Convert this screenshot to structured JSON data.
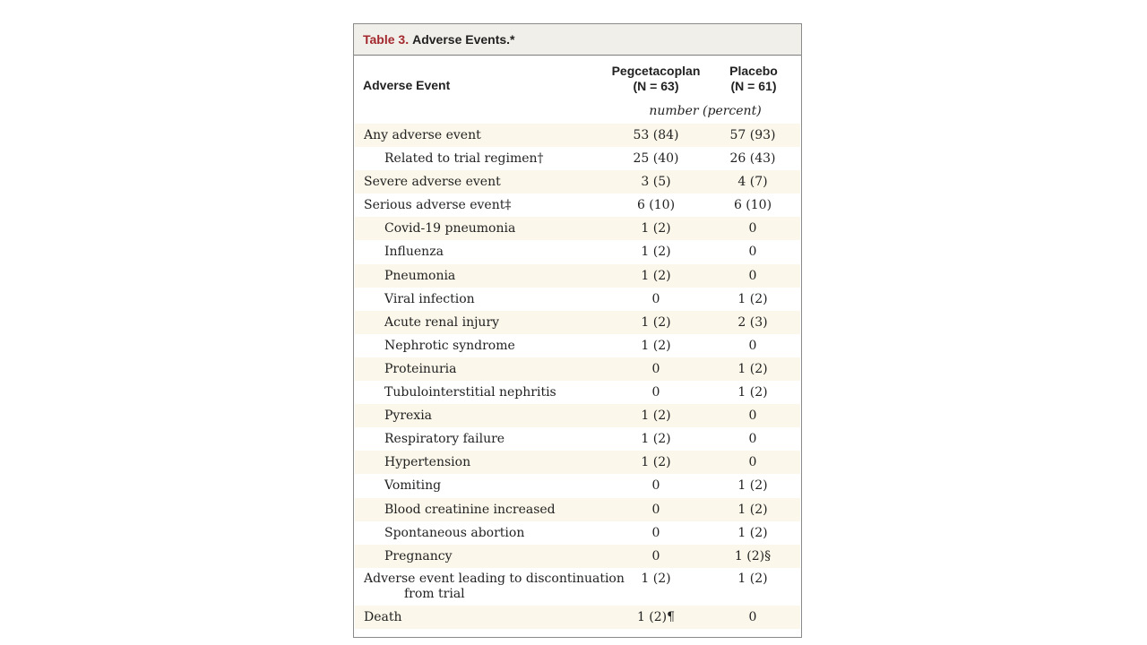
{
  "table": {
    "label": "Table 3.",
    "title": "Adverse Events.*",
    "columns": {
      "event": "Adverse Event",
      "pegcetacoplan": {
        "name": "Pegcetacoplan",
        "n": "(N = 63)"
      },
      "placebo": {
        "name": "Placebo",
        "n": "(N = 61)"
      }
    },
    "units": "number (percent)",
    "rows": [
      {
        "label": "Any adverse event",
        "peg": "53 (84)",
        "pla": "57 (93)"
      },
      {
        "label": "Related to trial regimen†",
        "peg": "25 (40)",
        "pla": "26 (43)"
      },
      {
        "label": "Severe adverse event",
        "peg": "3 (5)",
        "pla": "4 (7)"
      },
      {
        "label": "Serious adverse event‡",
        "peg": "6 (10)",
        "pla": "6 (10)"
      },
      {
        "label": "Covid-19 pneumonia",
        "peg": "1 (2)",
        "pla": "0"
      },
      {
        "label": "Influenza",
        "peg": "1 (2)",
        "pla": "0"
      },
      {
        "label": "Pneumonia",
        "peg": "1 (2)",
        "pla": "0"
      },
      {
        "label": "Viral infection",
        "peg": "0",
        "pla": "1 (2)"
      },
      {
        "label": "Acute renal injury",
        "peg": "1 (2)",
        "pla": "2 (3)"
      },
      {
        "label": "Nephrotic syndrome",
        "peg": "1 (2)",
        "pla": "0"
      },
      {
        "label": "Proteinuria",
        "peg": "0",
        "pla": "1 (2)"
      },
      {
        "label": "Tubulointerstitial nephritis",
        "peg": "0",
        "pla": "1 (2)"
      },
      {
        "label": "Pyrexia",
        "peg": "1 (2)",
        "pla": "0"
      },
      {
        "label": "Respiratory failure",
        "peg": "1 (2)",
        "pla": "0"
      },
      {
        "label": "Hypertension",
        "peg": "1 (2)",
        "pla": "0"
      },
      {
        "label": "Vomiting",
        "peg": "0",
        "pla": "1 (2)"
      },
      {
        "label": "Blood creatinine increased",
        "peg": "0",
        "pla": "1 (2)"
      },
      {
        "label": "Spontaneous abortion",
        "peg": "0",
        "pla": "1 (2)"
      },
      {
        "label": "Pregnancy",
        "peg": "0",
        "pla": "1 (2)§"
      },
      {
        "label": "Adverse event leading to discontinuation",
        "label_cont": "from trial",
        "peg": "1 (2)",
        "pla": "1 (2)"
      },
      {
        "label": "Death",
        "peg": "1 (2)¶",
        "pla": "0"
      }
    ]
  },
  "colors": {
    "caption_background": "#f1efe9",
    "caption_label": "#a3282e",
    "row_shading": "#fbf7ea",
    "border": "#8a8a8a"
  }
}
